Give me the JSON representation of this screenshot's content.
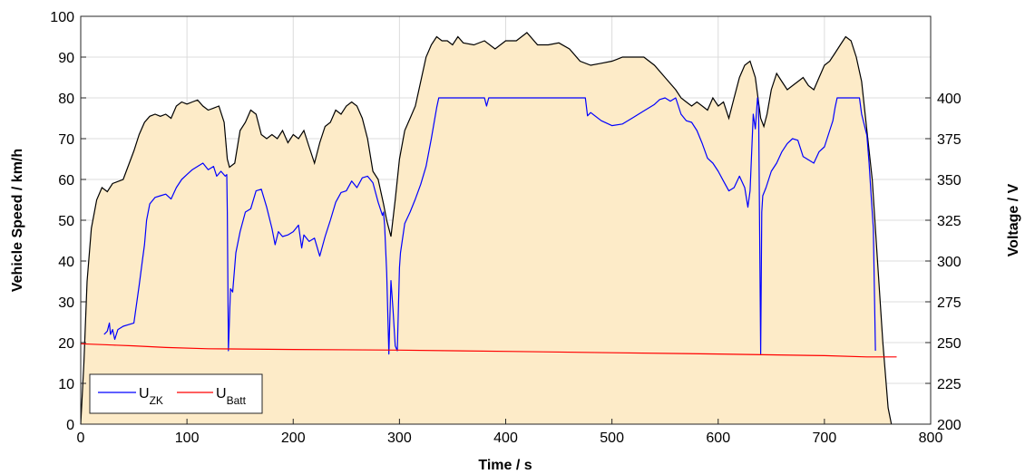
{
  "chart_data": {
    "type": "area",
    "xlabel": "Time / s",
    "ylabel_left": "Vehicle Speed / km/h",
    "ylabel_right": "Voltage / V",
    "xlim": [
      0,
      800
    ],
    "ylim_left": [
      0,
      100
    ],
    "ylim_right": [
      200,
      450
    ],
    "x_ticks": [
      "0",
      "100",
      "200",
      "300",
      "400",
      "500",
      "600",
      "700",
      "800"
    ],
    "y_left_ticks": [
      "0",
      "10",
      "20",
      "30",
      "40",
      "50",
      "60",
      "70",
      "80",
      "90",
      "100"
    ],
    "y_right_ticks": [
      "200",
      "225",
      "250",
      "275",
      "300",
      "325",
      "350",
      "375",
      "400"
    ],
    "grid": true,
    "legend_position": "bottom-left",
    "legend": [
      {
        "main": "U",
        "sub": "ZK",
        "color": "#0000ff"
      },
      {
        "main": "U",
        "sub": "Batt",
        "color": "#ff0000"
      }
    ],
    "series": [
      {
        "axis": "left",
        "style": "filled-area",
        "fill_color": "#fdebc8",
        "line_color": "#000000",
        "x": [
          0,
          3,
          6,
          10,
          15,
          20,
          25,
          30,
          40,
          50,
          55,
          60,
          65,
          70,
          75,
          80,
          85,
          90,
          95,
          100,
          105,
          110,
          115,
          120,
          125,
          130,
          135,
          138,
          140,
          145,
          150,
          155,
          160,
          165,
          170,
          175,
          180,
          185,
          190,
          195,
          200,
          205,
          210,
          215,
          220,
          225,
          230,
          235,
          240,
          245,
          250,
          255,
          260,
          265,
          270,
          275,
          280,
          285,
          288,
          292,
          296,
          300,
          305,
          310,
          315,
          320,
          325,
          330,
          335,
          340,
          345,
          350,
          355,
          360,
          370,
          380,
          390,
          400,
          410,
          420,
          430,
          440,
          450,
          460,
          470,
          480,
          490,
          500,
          505,
          510,
          520,
          530,
          540,
          550,
          560,
          565,
          570,
          575,
          580,
          585,
          590,
          595,
          600,
          605,
          610,
          615,
          620,
          625,
          630,
          635,
          640,
          643,
          646,
          650,
          655,
          660,
          665,
          670,
          675,
          680,
          685,
          690,
          695,
          700,
          705,
          710,
          715,
          720,
          725,
          730,
          735,
          740,
          745,
          750,
          755,
          760,
          763
        ],
        "y": [
          0,
          15,
          35,
          48,
          55,
          58,
          57,
          59,
          60,
          67,
          71,
          74,
          75.5,
          76,
          75.5,
          76,
          75,
          78,
          79,
          78.5,
          79,
          79.5,
          78,
          77,
          77.5,
          78,
          74,
          65,
          63,
          64,
          72,
          74,
          77,
          76,
          71,
          70,
          71,
          70,
          72,
          69,
          71,
          70,
          72,
          68,
          64,
          69,
          73,
          74,
          77,
          76,
          78,
          79,
          78,
          75,
          70,
          62,
          60,
          54,
          50,
          46,
          55,
          65,
          72,
          75,
          78,
          84,
          90,
          93,
          95,
          94,
          94,
          93,
          95,
          93.5,
          93,
          94,
          92,
          94,
          94,
          96,
          93,
          93,
          93.5,
          92,
          89,
          88,
          88.5,
          89,
          89.5,
          90,
          90,
          90,
          88,
          85,
          82,
          80,
          79,
          78,
          79,
          78,
          77,
          80,
          78,
          79,
          75,
          80,
          85,
          88,
          89,
          85,
          75,
          73,
          76,
          82,
          86,
          84,
          82,
          83,
          84,
          85,
          83,
          82,
          85,
          88,
          89,
          91,
          93,
          95,
          94,
          90,
          84,
          72,
          60,
          40,
          20,
          4,
          0
        ]
      },
      {
        "name": "U_ZK",
        "axis": "right",
        "color": "#0000ff",
        "x": [
          22,
          25,
          27,
          28,
          30,
          32,
          35,
          40,
          45,
          50,
          55,
          58,
          60,
          62,
          65,
          70,
          75,
          80,
          85,
          90,
          95,
          100,
          105,
          110,
          115,
          120,
          125,
          128,
          132,
          136,
          137.5,
          138,
          139,
          141,
          143,
          146,
          150,
          155,
          160,
          165,
          170,
          175,
          180,
          183,
          186,
          190,
          195,
          200,
          205,
          208,
          210,
          215,
          220,
          225,
          230,
          235,
          240,
          245,
          250,
          255,
          260,
          265,
          270,
          275,
          280,
          284,
          285,
          286,
          288,
          290,
          292,
          294,
          296,
          298,
          300,
          301,
          305,
          310,
          315,
          320,
          325,
          330,
          335,
          337,
          340,
          350,
          360,
          370,
          380,
          382,
          384,
          390,
          400,
          420,
          440,
          460,
          470,
          475,
          477,
          480,
          490,
          500,
          510,
          520,
          530,
          540,
          545,
          550,
          555,
          560,
          565,
          570,
          575,
          580,
          585,
          590,
          595,
          600,
          605,
          610,
          615,
          620,
          625,
          628,
          630,
          633,
          635,
          637,
          638,
          640,
          641,
          642,
          645,
          650,
          655,
          660,
          665,
          670,
          675,
          680,
          685,
          690,
          695,
          700,
          705,
          708,
          710,
          712,
          715,
          720,
          725,
          728,
          730,
          733,
          735,
          740,
          742,
          744,
          746,
          748
        ],
        "y": [
          255,
          257,
          262,
          255,
          258,
          252,
          258,
          260,
          261,
          262,
          285,
          300,
          310,
          325,
          335,
          339,
          340,
          341,
          338,
          345,
          350,
          353,
          356,
          358,
          360,
          356,
          358,
          352,
          355,
          352,
          353,
          330,
          245,
          283,
          281,
          305,
          318,
          330,
          332,
          343,
          344,
          333,
          320,
          310,
          318,
          315,
          316,
          318,
          322,
          308,
          316,
          312,
          314,
          303,
          315,
          325,
          336,
          342,
          343,
          349,
          345,
          351,
          352,
          348,
          336,
          328,
          330,
          322,
          293,
          243,
          288,
          270,
          248,
          245,
          296,
          305,
          323,
          330,
          338,
          347,
          358,
          375,
          394,
          400,
          400,
          400,
          400,
          400,
          400,
          395,
          400,
          400,
          400,
          400,
          400,
          400,
          400,
          400,
          389,
          391,
          386,
          383,
          384,
          388,
          392,
          396,
          399,
          400,
          398,
          400,
          390,
          386,
          385,
          380,
          372,
          363,
          360,
          355,
          349,
          343,
          345,
          352,
          345,
          333,
          343,
          390,
          381,
          400,
          395,
          243,
          330,
          340,
          345,
          355,
          360,
          367,
          372,
          375,
          374,
          364,
          362,
          360,
          367,
          370,
          380,
          386,
          394,
          400,
          400,
          400,
          400,
          400,
          400,
          400,
          390,
          377,
          360,
          340,
          320,
          245
        ]
      },
      {
        "name": "U_Batt",
        "axis": "right",
        "color": "#ff0000",
        "x": [
          0,
          30,
          50,
          80,
          120,
          200,
          300,
          400,
          500,
          600,
          700,
          740,
          768
        ],
        "y": [
          249.3,
          248.5,
          248,
          247,
          246.2,
          245.8,
          245.4,
          244.6,
          243.8,
          243,
          242,
          241.2,
          241.2
        ]
      }
    ]
  }
}
